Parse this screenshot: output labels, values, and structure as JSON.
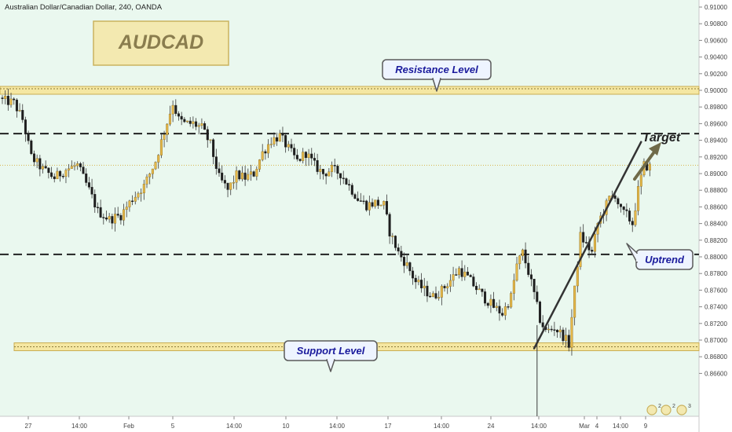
{
  "chart_data": {
    "type": "candlestick",
    "title": "Australian Dollar/Canadian Dollar, 240, OANDA",
    "symbol_badge": "AUDCAD",
    "x_tick_labels": [
      "27",
      "14:00",
      "Feb",
      "5",
      "14:00",
      "10",
      "14:00",
      "17",
      "14:00",
      "24",
      "14:00",
      "Mar",
      "4",
      "14:00",
      "9"
    ],
    "y_tick_labels": [
      "0.91000",
      "0.90800",
      "0.90600",
      "0.90400",
      "0.90200",
      "0.90000",
      "0.89800",
      "0.89600",
      "0.89400",
      "0.89200",
      "0.89000",
      "0.88800",
      "0.88600",
      "0.88400",
      "0.88200",
      "0.88000",
      "0.87800",
      "0.87600",
      "0.87400",
      "0.87200",
      "0.87000",
      "0.86800",
      "0.86600"
    ],
    "ylim": [
      0.865,
      0.911
    ],
    "grid": false,
    "levels": {
      "resistance": 0.9,
      "support": 0.8692,
      "target": 0.8948,
      "mid": 0.8803,
      "current": 0.891
    },
    "annotations": {
      "resistance": "Resistance Level",
      "support": "Support Level",
      "target": "Target",
      "uptrend": "Uptrend"
    },
    "trendline": {
      "start": {
        "bar": 184,
        "price": 0.869
      },
      "end": {
        "bar": 221,
        "price": 0.8938
      }
    },
    "corner_badges": [
      "2",
      "2",
      "3"
    ],
    "colors": {
      "background": "#eaf8ef",
      "candle_up": "#e5b748",
      "candle_down": "#1e1e1e",
      "wick": "#3a3a3a",
      "level_band": "#f5e7a2",
      "level_band_border": "#c9ad52",
      "dashed": "#222222",
      "trend": "#333333",
      "arrow": "#6f6a48",
      "badge_fill": "#f3e9b0",
      "badge_border": "#c9b25f",
      "badge_text": "#8a7d4e",
      "anno_text": "#1a1a9c"
    },
    "waypoints": [
      [
        0,
        0.8988
      ],
      [
        4,
        0.8985
      ],
      [
        7,
        0.8965
      ],
      [
        10,
        0.892
      ],
      [
        14,
        0.8905
      ],
      [
        18,
        0.8895
      ],
      [
        22,
        0.8905
      ],
      [
        26,
        0.891
      ],
      [
        30,
        0.888
      ],
      [
        33,
        0.8855
      ],
      [
        37,
        0.8845
      ],
      [
        41,
        0.885
      ],
      [
        45,
        0.887
      ],
      [
        49,
        0.8885
      ],
      [
        53,
        0.8915
      ],
      [
        56,
        0.895
      ],
      [
        59,
        0.8985
      ],
      [
        61,
        0.8965
      ],
      [
        63,
        0.896
      ],
      [
        66,
        0.896
      ],
      [
        69,
        0.8955
      ],
      [
        72,
        0.8935
      ],
      [
        75,
        0.8895
      ],
      [
        78,
        0.888
      ],
      [
        81,
        0.8898
      ],
      [
        84,
        0.8895
      ],
      [
        87,
        0.89
      ],
      [
        90,
        0.8925
      ],
      [
        93,
        0.894
      ],
      [
        96,
        0.8945
      ],
      [
        99,
        0.893
      ],
      [
        102,
        0.8915
      ],
      [
        105,
        0.8925
      ],
      [
        108,
        0.891
      ],
      [
        111,
        0.89
      ],
      [
        114,
        0.8905
      ],
      [
        117,
        0.89
      ],
      [
        120,
        0.8885
      ],
      [
        123,
        0.887
      ],
      [
        126,
        0.8862
      ],
      [
        129,
        0.8865
      ],
      [
        132,
        0.8862
      ],
      [
        134,
        0.883
      ],
      [
        137,
        0.8805
      ],
      [
        140,
        0.879
      ],
      [
        143,
        0.877
      ],
      [
        146,
        0.876
      ],
      [
        149,
        0.8752
      ],
      [
        152,
        0.876
      ],
      [
        155,
        0.8772
      ],
      [
        158,
        0.8785
      ],
      [
        161,
        0.8775
      ],
      [
        164,
        0.8762
      ],
      [
        167,
        0.875
      ],
      [
        170,
        0.874
      ],
      [
        173,
        0.8732
      ],
      [
        176,
        0.8752
      ],
      [
        178,
        0.879
      ],
      [
        180,
        0.8805
      ],
      [
        182,
        0.8782
      ],
      [
        184,
        0.8755
      ],
      [
        186,
        0.8725
      ],
      [
        188,
        0.871
      ],
      [
        191,
        0.8715
      ],
      [
        194,
        0.8705
      ],
      [
        196,
        0.8695
      ],
      [
        198,
        0.876
      ],
      [
        200,
        0.8825
      ],
      [
        202,
        0.8815
      ],
      [
        204,
        0.8805
      ],
      [
        206,
        0.884
      ],
      [
        208,
        0.8855
      ],
      [
        210,
        0.887
      ],
      [
        212,
        0.8875
      ],
      [
        214,
        0.8855
      ],
      [
        216,
        0.885
      ],
      [
        218,
        0.884
      ],
      [
        220,
        0.888
      ],
      [
        222,
        0.891
      ],
      [
        224,
        0.8908
      ]
    ]
  }
}
